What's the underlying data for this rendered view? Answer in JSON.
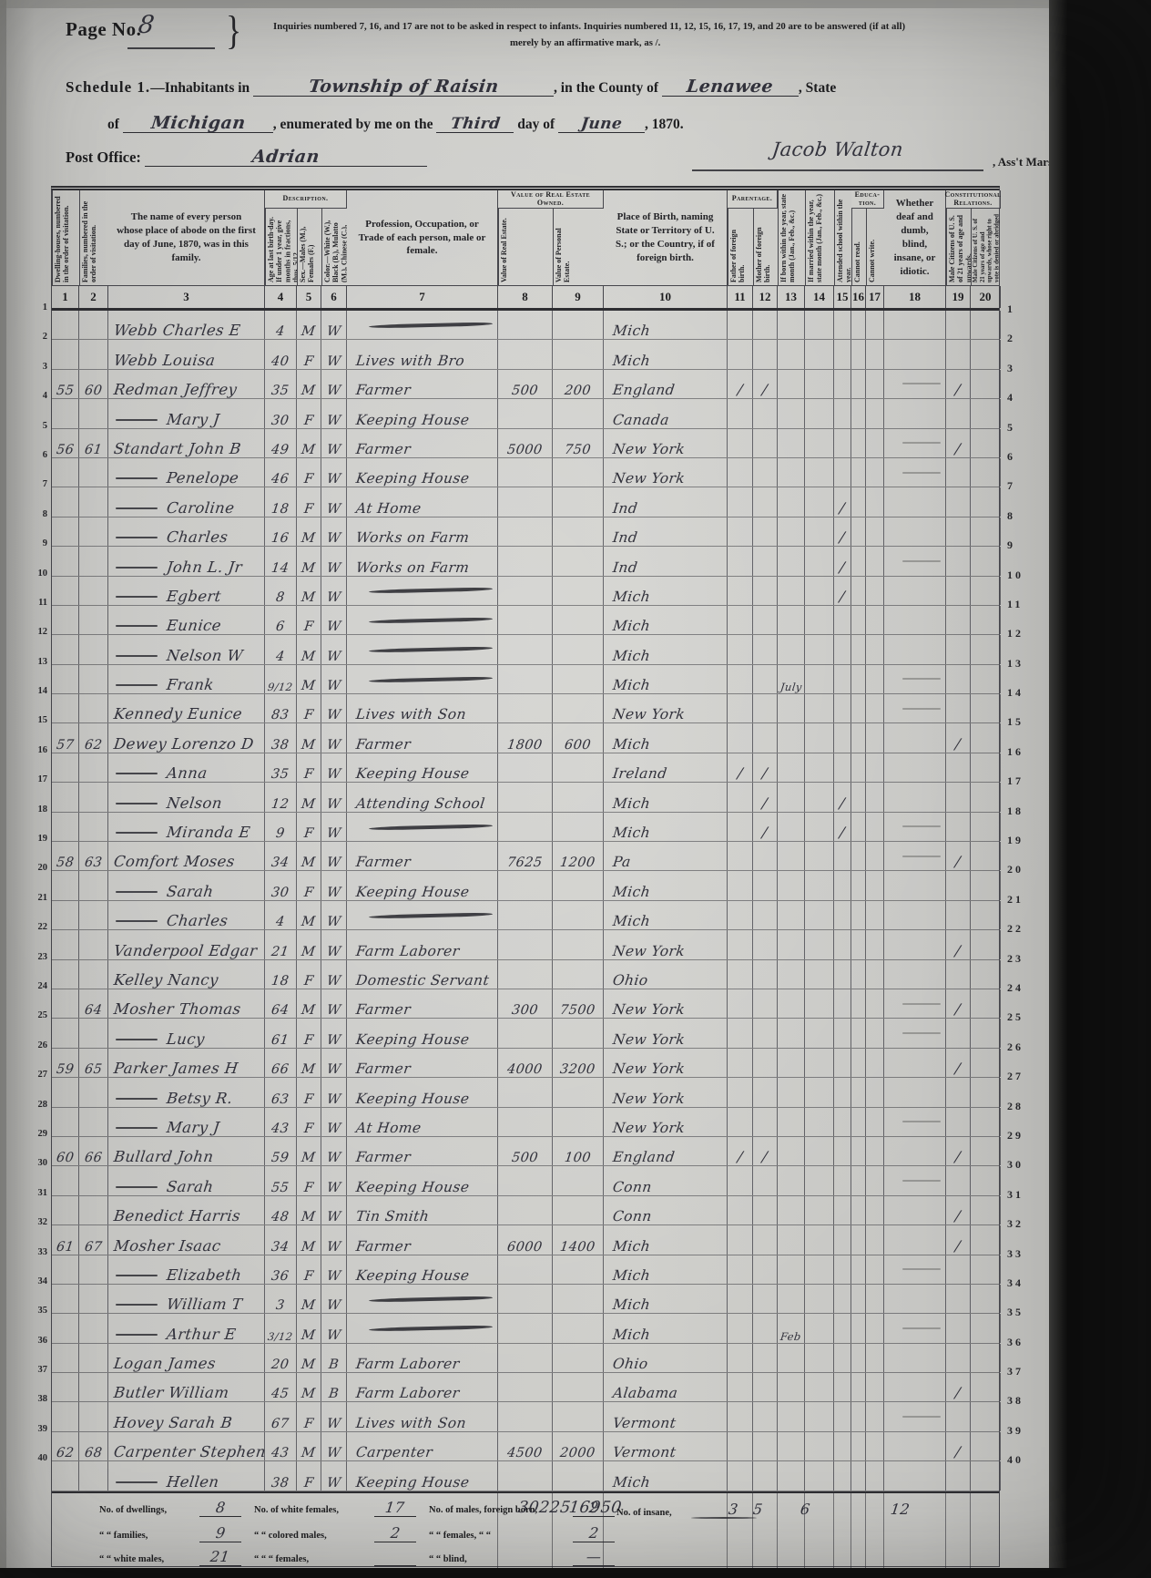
{
  "page": {
    "page_no_label": "Page No.",
    "page_no_value": "8",
    "brace": "}",
    "note_line1": "Inquiries numbered 7, 16, and 17 are not to be asked in respect to infants.   Inquiries numbered 11, 12, 15, 16, 17, 19, and 20 are to be answered (if at all)",
    "note_line2": "merely by an affirmative mark, as /.",
    "schedule_prefix": "Schedule 1.",
    "schedule_inhabitants": "—Inhabitants in",
    "township_value": "Township of Raisin",
    "county_label": ", in the County of",
    "county_value": "Lenawee",
    "state_suffix": ", State",
    "of_label": "of",
    "state_value": "Michigan",
    "enumerated_label": ", enumerated by me on the",
    "day_value": "Third",
    "day_of_label": "day of",
    "month_value": "June",
    "year_label": ", 1870.",
    "post_office_label": "Post Office:",
    "post_office_value": "Adrian",
    "marshal_signature": "Jacob Walton",
    "marshal_label": ", Ass't Marshal."
  },
  "table": {
    "groups": [
      {
        "key": "desc",
        "label": "Description.",
        "start": 3,
        "end": 5
      },
      {
        "key": "val",
        "label": "Value of Real Estate Owned.",
        "start": 7,
        "end": 8
      },
      {
        "key": "par",
        "label": "Parentage.",
        "start": 10,
        "end": 11
      },
      {
        "key": "edu",
        "label": "Educa- tion.",
        "start": 15,
        "end": 16
      },
      {
        "key": "con",
        "label": "Constitutional Relations.",
        "start": 18,
        "end": 19
      }
    ],
    "columns": [
      {
        "num": "1",
        "label": "Dwelling-houses, numbered in the order of visitation.",
        "vertical": true
      },
      {
        "num": "2",
        "label": "Families, numbered in the order of visitation.",
        "vertical": true
      },
      {
        "num": "3",
        "label": "The name of every person whose place of abode on the first day of June, 1870, was in this family.",
        "vertical": false
      },
      {
        "num": "4",
        "label": "Age at last birth-day. If under 1 year, give months in fractions, thus, 5/12.",
        "vertical": true
      },
      {
        "num": "5",
        "label": "Sex.—Males (M.), Females (F.)",
        "vertical": true
      },
      {
        "num": "6",
        "label": "Color.—White (W.), Black (B.), Mulatto (M.), Chinese (C.), Indian (I.)",
        "vertical": true
      },
      {
        "num": "7",
        "label": "Profession, Occupation, or Trade of each person, male or female.",
        "vertical": false
      },
      {
        "num": "8",
        "label": "Value of Real Estate.",
        "vertical": true
      },
      {
        "num": "9",
        "label": "Value of Personal Estate.",
        "vertical": true
      },
      {
        "num": "10",
        "label": "Place of Birth, naming State or Territory of U. S.; or the Country, if of foreign birth.",
        "vertical": false
      },
      {
        "num": "11",
        "label": "Father of foreign birth.",
        "vertical": true
      },
      {
        "num": "12",
        "label": "Mother of foreign birth.",
        "vertical": true
      },
      {
        "num": "13",
        "label": "If born within the year, state month (Jan., Feb., &c.)",
        "vertical": true
      },
      {
        "num": "14",
        "label": "If married within the year, state month (Jan., Feb., &c.)",
        "vertical": true
      },
      {
        "num": "15",
        "label": "Attended school within the year.",
        "vertical": true
      },
      {
        "num": "16",
        "label": "Cannot read.",
        "vertical": true
      },
      {
        "num": "17",
        "label": "Cannot write.",
        "vertical": true
      },
      {
        "num": "18",
        "label": "Whether deaf and dumb, blind, insane, or idiotic.",
        "vertical": false
      },
      {
        "num": "19",
        "label": "Male Citizens of U. S. of 21 years of age and upwards.",
        "vertical": true
      },
      {
        "num": "20",
        "label": "Male Citizens of U. S. of 21 years of age and upwards, whose right to vote is denied or abridged on other grounds than rebellion or other crime.",
        "vertical": true,
        "tiny": true
      }
    ],
    "rows": [
      {
        "ln": 1,
        "dw": "",
        "fam": "",
        "ditto": 0,
        "name": "Webb Charles E",
        "age": "4",
        "sex": "M",
        "color": "W",
        "occ": "~",
        "re": "",
        "pe": "",
        "bp": "Mich",
        "c11": "",
        "c12": "",
        "c13": "",
        "c15": "",
        "c19": ""
      },
      {
        "ln": 2,
        "ditto": 0,
        "name": "Webb Louisa",
        "age": "40",
        "sex": "F",
        "color": "W",
        "occ": "Lives with Bro",
        "bp": "Mich"
      },
      {
        "ln": 3,
        "dw": "55",
        "fam": "60",
        "ditto": 0,
        "name": "Redman Jeffrey",
        "age": "35",
        "sex": "M",
        "color": "W",
        "occ": "Farmer",
        "re": "500",
        "pe": "200",
        "bp": "England",
        "c11": "/",
        "c12": "/",
        "c19": "/"
      },
      {
        "ln": 4,
        "ditto": 1,
        "name": "Mary J",
        "age": "30",
        "sex": "F",
        "color": "W",
        "occ": "Keeping House",
        "bp": "Canada"
      },
      {
        "ln": 5,
        "dw": "56",
        "fam": "61",
        "ditto": 0,
        "name": "Standart John B",
        "age": "49",
        "sex": "M",
        "color": "W",
        "occ": "Farmer",
        "re": "5000",
        "pe": "750",
        "bp": "New York",
        "c19": "/"
      },
      {
        "ln": 6,
        "ditto": 1,
        "name": "Penelope",
        "age": "46",
        "sex": "F",
        "color": "W",
        "occ": "Keeping House",
        "bp": "New York"
      },
      {
        "ln": 7,
        "ditto": 1,
        "name": "Caroline",
        "age": "18",
        "sex": "F",
        "color": "W",
        "occ": "At Home",
        "bp": "Ind",
        "c15": "/"
      },
      {
        "ln": 8,
        "ditto": 1,
        "name": "Charles",
        "age": "16",
        "sex": "M",
        "color": "W",
        "occ": "Works on Farm",
        "bp": "Ind",
        "c15": "/"
      },
      {
        "ln": 9,
        "ditto": 1,
        "name": "John L. Jr",
        "age": "14",
        "sex": "M",
        "color": "W",
        "occ": "Works on Farm",
        "bp": "Ind",
        "c15": "/"
      },
      {
        "ln": 10,
        "ditto": 1,
        "name": "Egbert",
        "age": "8",
        "sex": "M",
        "color": "W",
        "occ": "~",
        "bp": "Mich",
        "c15": "/"
      },
      {
        "ln": 11,
        "ditto": 1,
        "name": "Eunice",
        "age": "6",
        "sex": "F",
        "color": "W",
        "occ": "~",
        "bp": "Mich"
      },
      {
        "ln": 12,
        "ditto": 1,
        "name": "Nelson W",
        "age": "4",
        "sex": "M",
        "color": "W",
        "occ": "~",
        "bp": "Mich"
      },
      {
        "ln": 13,
        "ditto": 1,
        "name": "Frank",
        "age": "9/12",
        "sex": "M",
        "color": "W",
        "occ": "~",
        "bp": "Mich",
        "c13": "July"
      },
      {
        "ln": 14,
        "ditto": 0,
        "name": "Kennedy Eunice",
        "age": "83",
        "sex": "F",
        "color": "W",
        "occ": "Lives with Son",
        "bp": "New York"
      },
      {
        "ln": 15,
        "dw": "57",
        "fam": "62",
        "ditto": 0,
        "name": "Dewey Lorenzo D",
        "age": "38",
        "sex": "M",
        "color": "W",
        "occ": "Farmer",
        "re": "1800",
        "pe": "600",
        "bp": "Mich",
        "c19": "/"
      },
      {
        "ln": 16,
        "ditto": 1,
        "name": "Anna",
        "age": "35",
        "sex": "F",
        "color": "W",
        "occ": "Keeping House",
        "bp": "Ireland",
        "c11": "/",
        "c12": "/"
      },
      {
        "ln": 17,
        "ditto": 1,
        "name": "Nelson",
        "age": "12",
        "sex": "M",
        "color": "W",
        "occ": "Attending School",
        "bp": "Mich",
        "c12": "/",
        "c15": "/"
      },
      {
        "ln": 18,
        "ditto": 1,
        "name": "Miranda E",
        "age": "9",
        "sex": "F",
        "color": "W",
        "occ": "~",
        "bp": "Mich",
        "c12": "/",
        "c15": "/"
      },
      {
        "ln": 19,
        "dw": "58",
        "fam": "63",
        "ditto": 0,
        "name": "Comfort Moses",
        "age": "34",
        "sex": "M",
        "color": "W",
        "occ": "Farmer",
        "re": "7625",
        "pe": "1200",
        "bp": "Pa",
        "c19": "/"
      },
      {
        "ln": 20,
        "ditto": 1,
        "name": "Sarah",
        "age": "30",
        "sex": "F",
        "color": "W",
        "occ": "Keeping House",
        "bp": "Mich"
      },
      {
        "ln": 21,
        "ditto": 1,
        "name": "Charles",
        "age": "4",
        "sex": "M",
        "color": "W",
        "occ": "~",
        "bp": "Mich"
      },
      {
        "ln": 22,
        "ditto": 0,
        "name": "Vanderpool Edgar",
        "age": "21",
        "sex": "M",
        "color": "W",
        "occ": "Farm Laborer",
        "bp": "New York",
        "c19": "/"
      },
      {
        "ln": 23,
        "ditto": 0,
        "name": "Kelley Nancy",
        "age": "18",
        "sex": "F",
        "color": "W",
        "occ": "Domestic Servant",
        "bp": "Ohio"
      },
      {
        "ln": 24,
        "fam": "64",
        "ditto": 0,
        "name": "Mosher Thomas",
        "age": "64",
        "sex": "M",
        "color": "W",
        "occ": "Farmer",
        "re": "300",
        "pe": "7500",
        "bp": "New York",
        "c19": "/"
      },
      {
        "ln": 25,
        "ditto": 1,
        "name": "Lucy",
        "age": "61",
        "sex": "F",
        "color": "W",
        "occ": "Keeping House",
        "bp": "New York"
      },
      {
        "ln": 26,
        "dw": "59",
        "fam": "65",
        "ditto": 0,
        "name": "Parker James H",
        "age": "66",
        "sex": "M",
        "color": "W",
        "occ": "Farmer",
        "re": "4000",
        "pe": "3200",
        "bp": "New York",
        "c19": "/"
      },
      {
        "ln": 27,
        "ditto": 1,
        "name": "Betsy R.",
        "age": "63",
        "sex": "F",
        "color": "W",
        "occ": "Keeping House",
        "bp": "New York"
      },
      {
        "ln": 28,
        "ditto": 1,
        "name": "Mary J",
        "age": "43",
        "sex": "F",
        "color": "W",
        "occ": "At Home",
        "bp": "New York"
      },
      {
        "ln": 29,
        "dw": "60",
        "fam": "66",
        "ditto": 0,
        "name": "Bullard John",
        "age": "59",
        "sex": "M",
        "color": "W",
        "occ": "Farmer",
        "re": "500",
        "pe": "100",
        "bp": "England",
        "c11": "/",
        "c12": "/",
        "c19": "/"
      },
      {
        "ln": 30,
        "ditto": 1,
        "name": "Sarah",
        "age": "55",
        "sex": "F",
        "color": "W",
        "occ": "Keeping House",
        "bp": "Conn"
      },
      {
        "ln": 31,
        "ditto": 0,
        "name": "Benedict Harris",
        "age": "48",
        "sex": "M",
        "color": "W",
        "occ": "Tin Smith",
        "bp": "Conn",
        "c19": "/"
      },
      {
        "ln": 32,
        "dw": "61",
        "fam": "67",
        "ditto": 0,
        "name": "Mosher Isaac",
        "age": "34",
        "sex": "M",
        "color": "W",
        "occ": "Farmer",
        "re": "6000",
        "pe": "1400",
        "bp": "Mich",
        "c19": "/"
      },
      {
        "ln": 33,
        "ditto": 1,
        "name": "Elizabeth",
        "age": "36",
        "sex": "F",
        "color": "W",
        "occ": "Keeping House",
        "bp": "Mich"
      },
      {
        "ln": 34,
        "ditto": 1,
        "name": "William T",
        "age": "3",
        "sex": "M",
        "color": "W",
        "occ": "~",
        "bp": "Mich"
      },
      {
        "ln": 35,
        "ditto": 1,
        "name": "Arthur E",
        "age": "3/12",
        "sex": "M",
        "color": "W",
        "occ": "~",
        "bp": "Mich",
        "c13": "Feb"
      },
      {
        "ln": 36,
        "ditto": 0,
        "name": "Logan James",
        "age": "20",
        "sex": "M",
        "color": "B",
        "occ": "Farm Laborer",
        "bp": "Ohio"
      },
      {
        "ln": 37,
        "ditto": 0,
        "name": "Butler William",
        "age": "45",
        "sex": "M",
        "color": "B",
        "occ": "Farm Laborer",
        "bp": "Alabama",
        "c19": "/"
      },
      {
        "ln": 38,
        "ditto": 0,
        "name": "Hovey Sarah B",
        "age": "67",
        "sex": "F",
        "color": "W",
        "occ": "Lives with Son",
        "bp": "Vermont"
      },
      {
        "ln": 39,
        "dw": "62",
        "fam": "68",
        "ditto": 0,
        "name": "Carpenter Stephen",
        "age": "43",
        "sex": "M",
        "color": "W",
        "occ": "Carpenter",
        "re": "4500",
        "pe": "2000",
        "bp": "Vermont",
        "c19": "/"
      },
      {
        "ln": 40,
        "ditto": 1,
        "name": "Hellen",
        "age": "38",
        "sex": "F",
        "color": "W",
        "occ": "Keeping House",
        "bp": "Mich"
      }
    ]
  },
  "footer": {
    "line1": {
      "l1": "No. of dwellings,",
      "v1": "8",
      "l2": "No. of white females,",
      "v2": "17",
      "l3": "No. of males, foreign born,",
      "v3": "2"
    },
    "line2": {
      "l1": "“ “ families,",
      "v1": "9",
      "l2": "“ “ colored males,",
      "v2": "2",
      "l3": "“ “ females, “ “",
      "v3": "2"
    },
    "line3": {
      "l1": "“ “ white males,",
      "v1": "21",
      "l2": "“ “ “ females,",
      "v2": "",
      "l3": "“ “ blind,",
      "v3": "—"
    },
    "total_real_estate": "30225",
    "total_personal_estate": "16950",
    "insane_label": "No. of insane,",
    "insane_value": "—",
    "total_father_foreign": "3",
    "total_mother_foreign": "5",
    "total_attended_school": "6",
    "total_male_citizens": "12"
  },
  "colors": {
    "paper": "#c7c7c4",
    "ink_printed": "#1d1d1f",
    "ink_handwritten": "#32323c",
    "rule_lines": "#46464c",
    "scan_edge": "#0d0d0d"
  }
}
